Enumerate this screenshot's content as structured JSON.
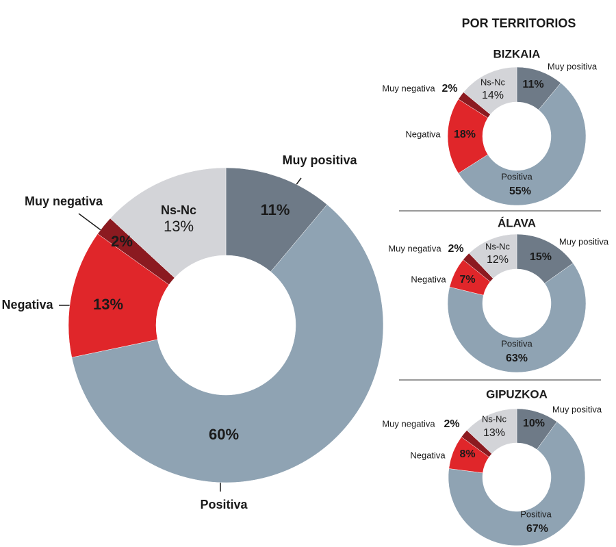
{
  "heading": "POR TERRITORIOS",
  "chart_data": [
    {
      "type": "pie",
      "categories": [
        "Muy positiva",
        "Positiva",
        "Negativa",
        "Muy negativa",
        "Ns-Nc"
      ],
      "values": [
        11,
        60,
        13,
        2,
        13
      ],
      "value_labels": [
        "11%",
        "60%",
        "13%",
        "2%",
        "13%"
      ],
      "colors": [
        "#6e7a87",
        "#8fa3b3",
        "#e0262a",
        "#8b1a20",
        "#d3d4d8"
      ]
    },
    {
      "type": "pie",
      "title": "BIZKAIA",
      "categories": [
        "Muy positiva",
        "Positiva",
        "Negativa",
        "Muy negativa",
        "Ns-Nc"
      ],
      "values": [
        11,
        55,
        18,
        2,
        14
      ],
      "value_labels": [
        "11%",
        "55%",
        "18%",
        "2%",
        "14%"
      ],
      "colors": [
        "#6e7a87",
        "#8fa3b3",
        "#e0262a",
        "#8b1a20",
        "#d3d4d8"
      ]
    },
    {
      "type": "pie",
      "title": "ÁLAVA",
      "categories": [
        "Muy positiva",
        "Positiva",
        "Negativa",
        "Muy negativa",
        "Ns-Nc"
      ],
      "values": [
        15,
        63,
        7,
        2,
        12
      ],
      "value_labels": [
        "15%",
        "63%",
        "7%",
        "2%",
        "12%"
      ],
      "colors": [
        "#6e7a87",
        "#8fa3b3",
        "#e0262a",
        "#8b1a20",
        "#d3d4d8"
      ]
    },
    {
      "type": "pie",
      "title": "GIPUZKOA",
      "categories": [
        "Muy positiva",
        "Positiva",
        "Negativa",
        "Muy negativa",
        "Ns-Nc"
      ],
      "values": [
        10,
        67,
        8,
        2,
        13
      ],
      "value_labels": [
        "10%",
        "67%",
        "8%",
        "2%",
        "13%"
      ],
      "colors": [
        "#6e7a87",
        "#8fa3b3",
        "#e0262a",
        "#8b1a20",
        "#d3d4d8"
      ]
    }
  ]
}
